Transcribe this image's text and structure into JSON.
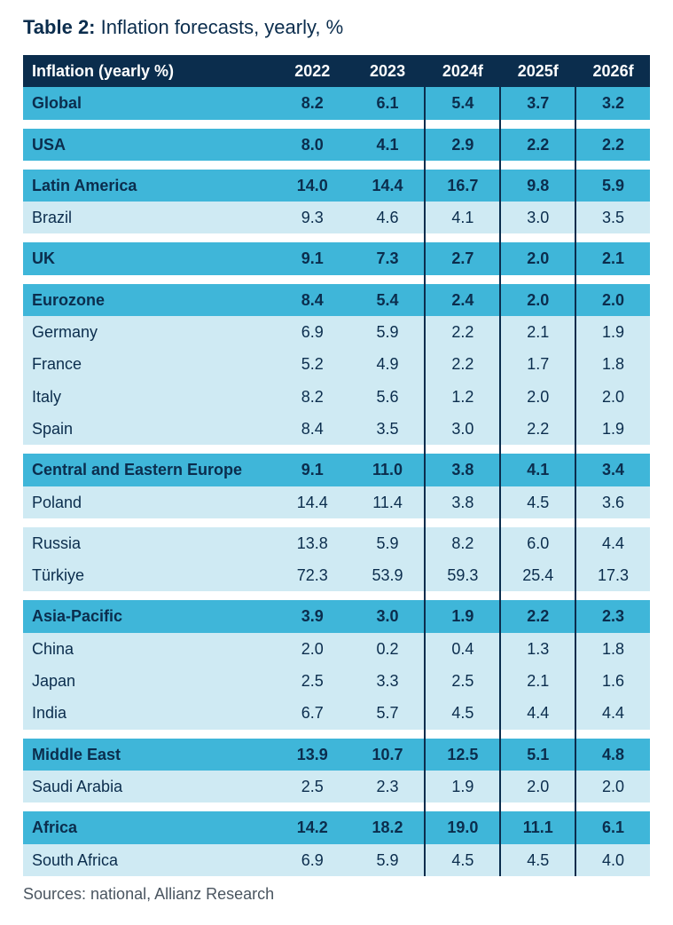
{
  "title": {
    "label": "Table 2:",
    "text": "Inflation forecasts, yearly, %"
  },
  "header": {
    "label": "Inflation (yearly %)",
    "cols": [
      "2022",
      "2023",
      "2024f",
      "2025f",
      "2026f"
    ]
  },
  "groups": [
    {
      "region": {
        "name": "Global",
        "values": [
          "8.2",
          "6.1",
          "5.4",
          "3.7",
          "3.2"
        ]
      },
      "rows": []
    },
    {
      "region": {
        "name": "USA",
        "values": [
          "8.0",
          "4.1",
          "2.9",
          "2.2",
          "2.2"
        ]
      },
      "rows": []
    },
    {
      "region": {
        "name": "Latin America",
        "values": [
          "14.0",
          "14.4",
          "16.7",
          "9.8",
          "5.9"
        ]
      },
      "rows": [
        {
          "name": "Brazil",
          "values": [
            "9.3",
            "4.6",
            "4.1",
            "3.0",
            "3.5"
          ]
        }
      ]
    },
    {
      "region": {
        "name": "UK",
        "values": [
          "9.1",
          "7.3",
          "2.7",
          "2.0",
          "2.1"
        ]
      },
      "rows": []
    },
    {
      "region": {
        "name": "Eurozone",
        "values": [
          "8.4",
          "5.4",
          "2.4",
          "2.0",
          "2.0"
        ]
      },
      "rows": [
        {
          "name": "Germany",
          "values": [
            "6.9",
            "5.9",
            "2.2",
            "2.1",
            "1.9"
          ]
        },
        {
          "name": "France",
          "values": [
            "5.2",
            "4.9",
            "2.2",
            "1.7",
            "1.8"
          ]
        },
        {
          "name": "Italy",
          "values": [
            "8.2",
            "5.6",
            "1.2",
            "2.0",
            "2.0"
          ]
        },
        {
          "name": "Spain",
          "values": [
            "8.4",
            "3.5",
            "3.0",
            "2.2",
            "1.9"
          ]
        }
      ]
    },
    {
      "region": {
        "name": "Central and Eastern Europe",
        "values": [
          "9.1",
          "11.0",
          "3.8",
          "4.1",
          "3.4"
        ]
      },
      "rows": [
        {
          "name": "Poland",
          "values": [
            "14.4",
            "11.4",
            "3.8",
            "4.5",
            "3.6"
          ]
        }
      ],
      "extra_rows": [
        {
          "name": "Russia",
          "values": [
            "13.8",
            "5.9",
            "8.2",
            "6.0",
            "4.4"
          ]
        },
        {
          "name": "Türkiye",
          "values": [
            "72.3",
            "53.9",
            "59.3",
            "25.4",
            "17.3"
          ]
        }
      ]
    },
    {
      "region": {
        "name": "Asia-Pacific",
        "values": [
          "3.9",
          "3.0",
          "1.9",
          "2.2",
          "2.3"
        ]
      },
      "rows": [
        {
          "name": "China",
          "values": [
            "2.0",
            "0.2",
            "0.4",
            "1.3",
            "1.8"
          ]
        },
        {
          "name": "Japan",
          "values": [
            "2.5",
            "3.3",
            "2.5",
            "2.1",
            "1.6"
          ]
        },
        {
          "name": "India",
          "values": [
            "6.7",
            "5.7",
            "4.5",
            "4.4",
            "4.4"
          ]
        }
      ]
    },
    {
      "region": {
        "name": "Middle East",
        "values": [
          "13.9",
          "10.7",
          "12.5",
          "5.1",
          "4.8"
        ]
      },
      "rows": [
        {
          "name": "Saudi Arabia",
          "values": [
            "2.5",
            "2.3",
            "1.9",
            "2.0",
            "2.0"
          ]
        }
      ]
    },
    {
      "region": {
        "name": "Africa",
        "values": [
          "14.2",
          "18.2",
          "19.0",
          "11.1",
          "6.1"
        ]
      },
      "rows": [
        {
          "name": "South Africa",
          "values": [
            "6.9",
            "5.9",
            "4.5",
            "4.5",
            "4.0"
          ]
        }
      ]
    }
  ],
  "sources": "Sources: national, Allianz Research",
  "style": {
    "type": "table",
    "header_bg": "#0b2d4d",
    "header_fg": "#ffffff",
    "region_bg": "#3fb6d9",
    "sub_bg": "#cfeaf3",
    "text_color": "#0b2d4d",
    "gap_bg": "#ffffff",
    "font_size_title": 22,
    "font_size_body": 18,
    "divider_color": "#0b2d4d",
    "divider_width": 2,
    "col_widths_pct": [
      40,
      12,
      12,
      12,
      12,
      12
    ],
    "vline_positions_pct": [
      64,
      76,
      88
    ]
  }
}
